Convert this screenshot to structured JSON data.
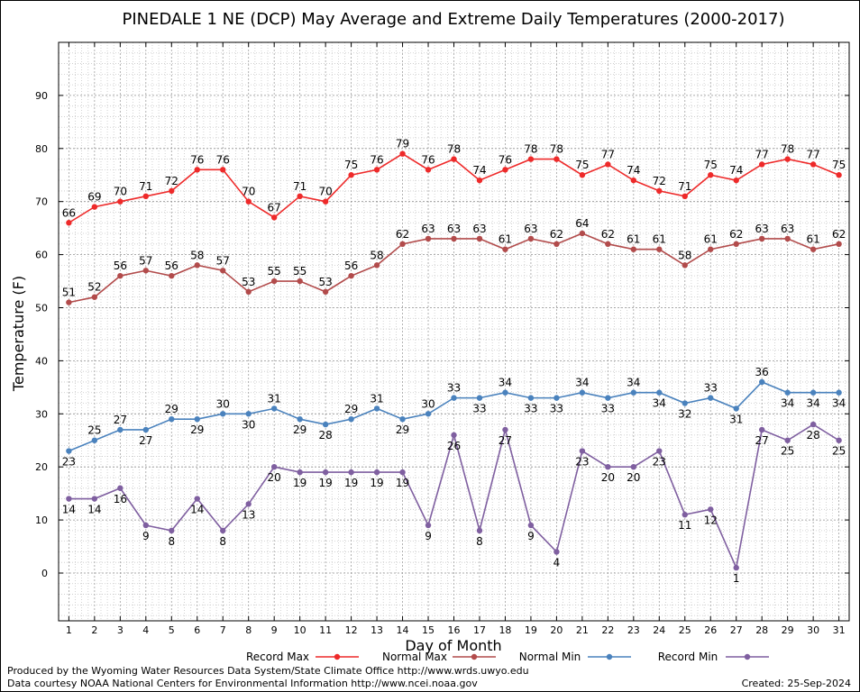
{
  "chart_data": {
    "type": "line",
    "title": "PINEDALE 1 NE (DCP) May Average and Extreme Daily Temperatures (2000-2017)",
    "xlabel": "Day of Month",
    "ylabel": "Temperature (F)",
    "x": [
      1,
      2,
      3,
      4,
      5,
      6,
      7,
      8,
      9,
      10,
      11,
      12,
      13,
      14,
      15,
      16,
      17,
      18,
      19,
      20,
      21,
      22,
      23,
      24,
      25,
      26,
      27,
      28,
      29,
      30,
      31
    ],
    "xlim": [
      0.6,
      31.4
    ],
    "ylim": [
      -9,
      100
    ],
    "yticks": [
      0,
      10,
      20,
      30,
      40,
      50,
      60,
      70,
      80,
      90
    ],
    "grid": true,
    "legend_position": "bottom",
    "series": [
      {
        "name": "Record Max",
        "color": "#ee2a2a",
        "label_position": "above",
        "values": [
          66,
          69,
          70,
          71,
          72,
          76,
          76,
          70,
          67,
          71,
          70,
          75,
          76,
          79,
          76,
          78,
          74,
          76,
          78,
          78,
          75,
          77,
          74,
          72,
          71,
          75,
          74,
          77,
          78,
          77,
          75
        ]
      },
      {
        "name": "Normal Max",
        "color": "#b24b4b",
        "label_position": "above",
        "values": [
          51,
          52,
          56,
          57,
          56,
          58,
          57,
          53,
          55,
          55,
          53,
          56,
          58,
          62,
          63,
          63,
          63,
          61,
          63,
          62,
          64,
          62,
          61,
          61,
          58,
          61,
          62,
          63,
          63,
          61,
          62
        ]
      },
      {
        "name": "Normal Min",
        "color": "#4a82bd",
        "label_position": "mixed",
        "values": [
          23,
          25,
          27,
          27,
          29,
          29,
          30,
          30,
          31,
          29,
          28,
          29,
          31,
          29,
          30,
          33,
          33,
          34,
          33,
          33,
          34,
          33,
          34,
          34,
          32,
          33,
          31,
          36,
          34,
          34,
          34
        ]
      },
      {
        "name": "Record Min",
        "color": "#7f5fa0",
        "label_position": "below",
        "values": [
          14,
          14,
          16,
          9,
          8,
          14,
          8,
          13,
          20,
          19,
          19,
          19,
          19,
          19,
          9,
          26,
          8,
          27,
          9,
          4,
          23,
          20,
          20,
          23,
          11,
          12,
          1,
          27,
          25,
          28,
          25
        ]
      }
    ]
  },
  "footer": {
    "credit_line_1": "Produced by the Wyoming Water Resources Data System/State Climate Office http://www.wrds.uwyo.edu",
    "credit_line_2": "Data courtesy NOAA National Centers for Environmental Information http://www.ncei.noaa.gov",
    "created": "Created:  25-Sep-2024"
  }
}
